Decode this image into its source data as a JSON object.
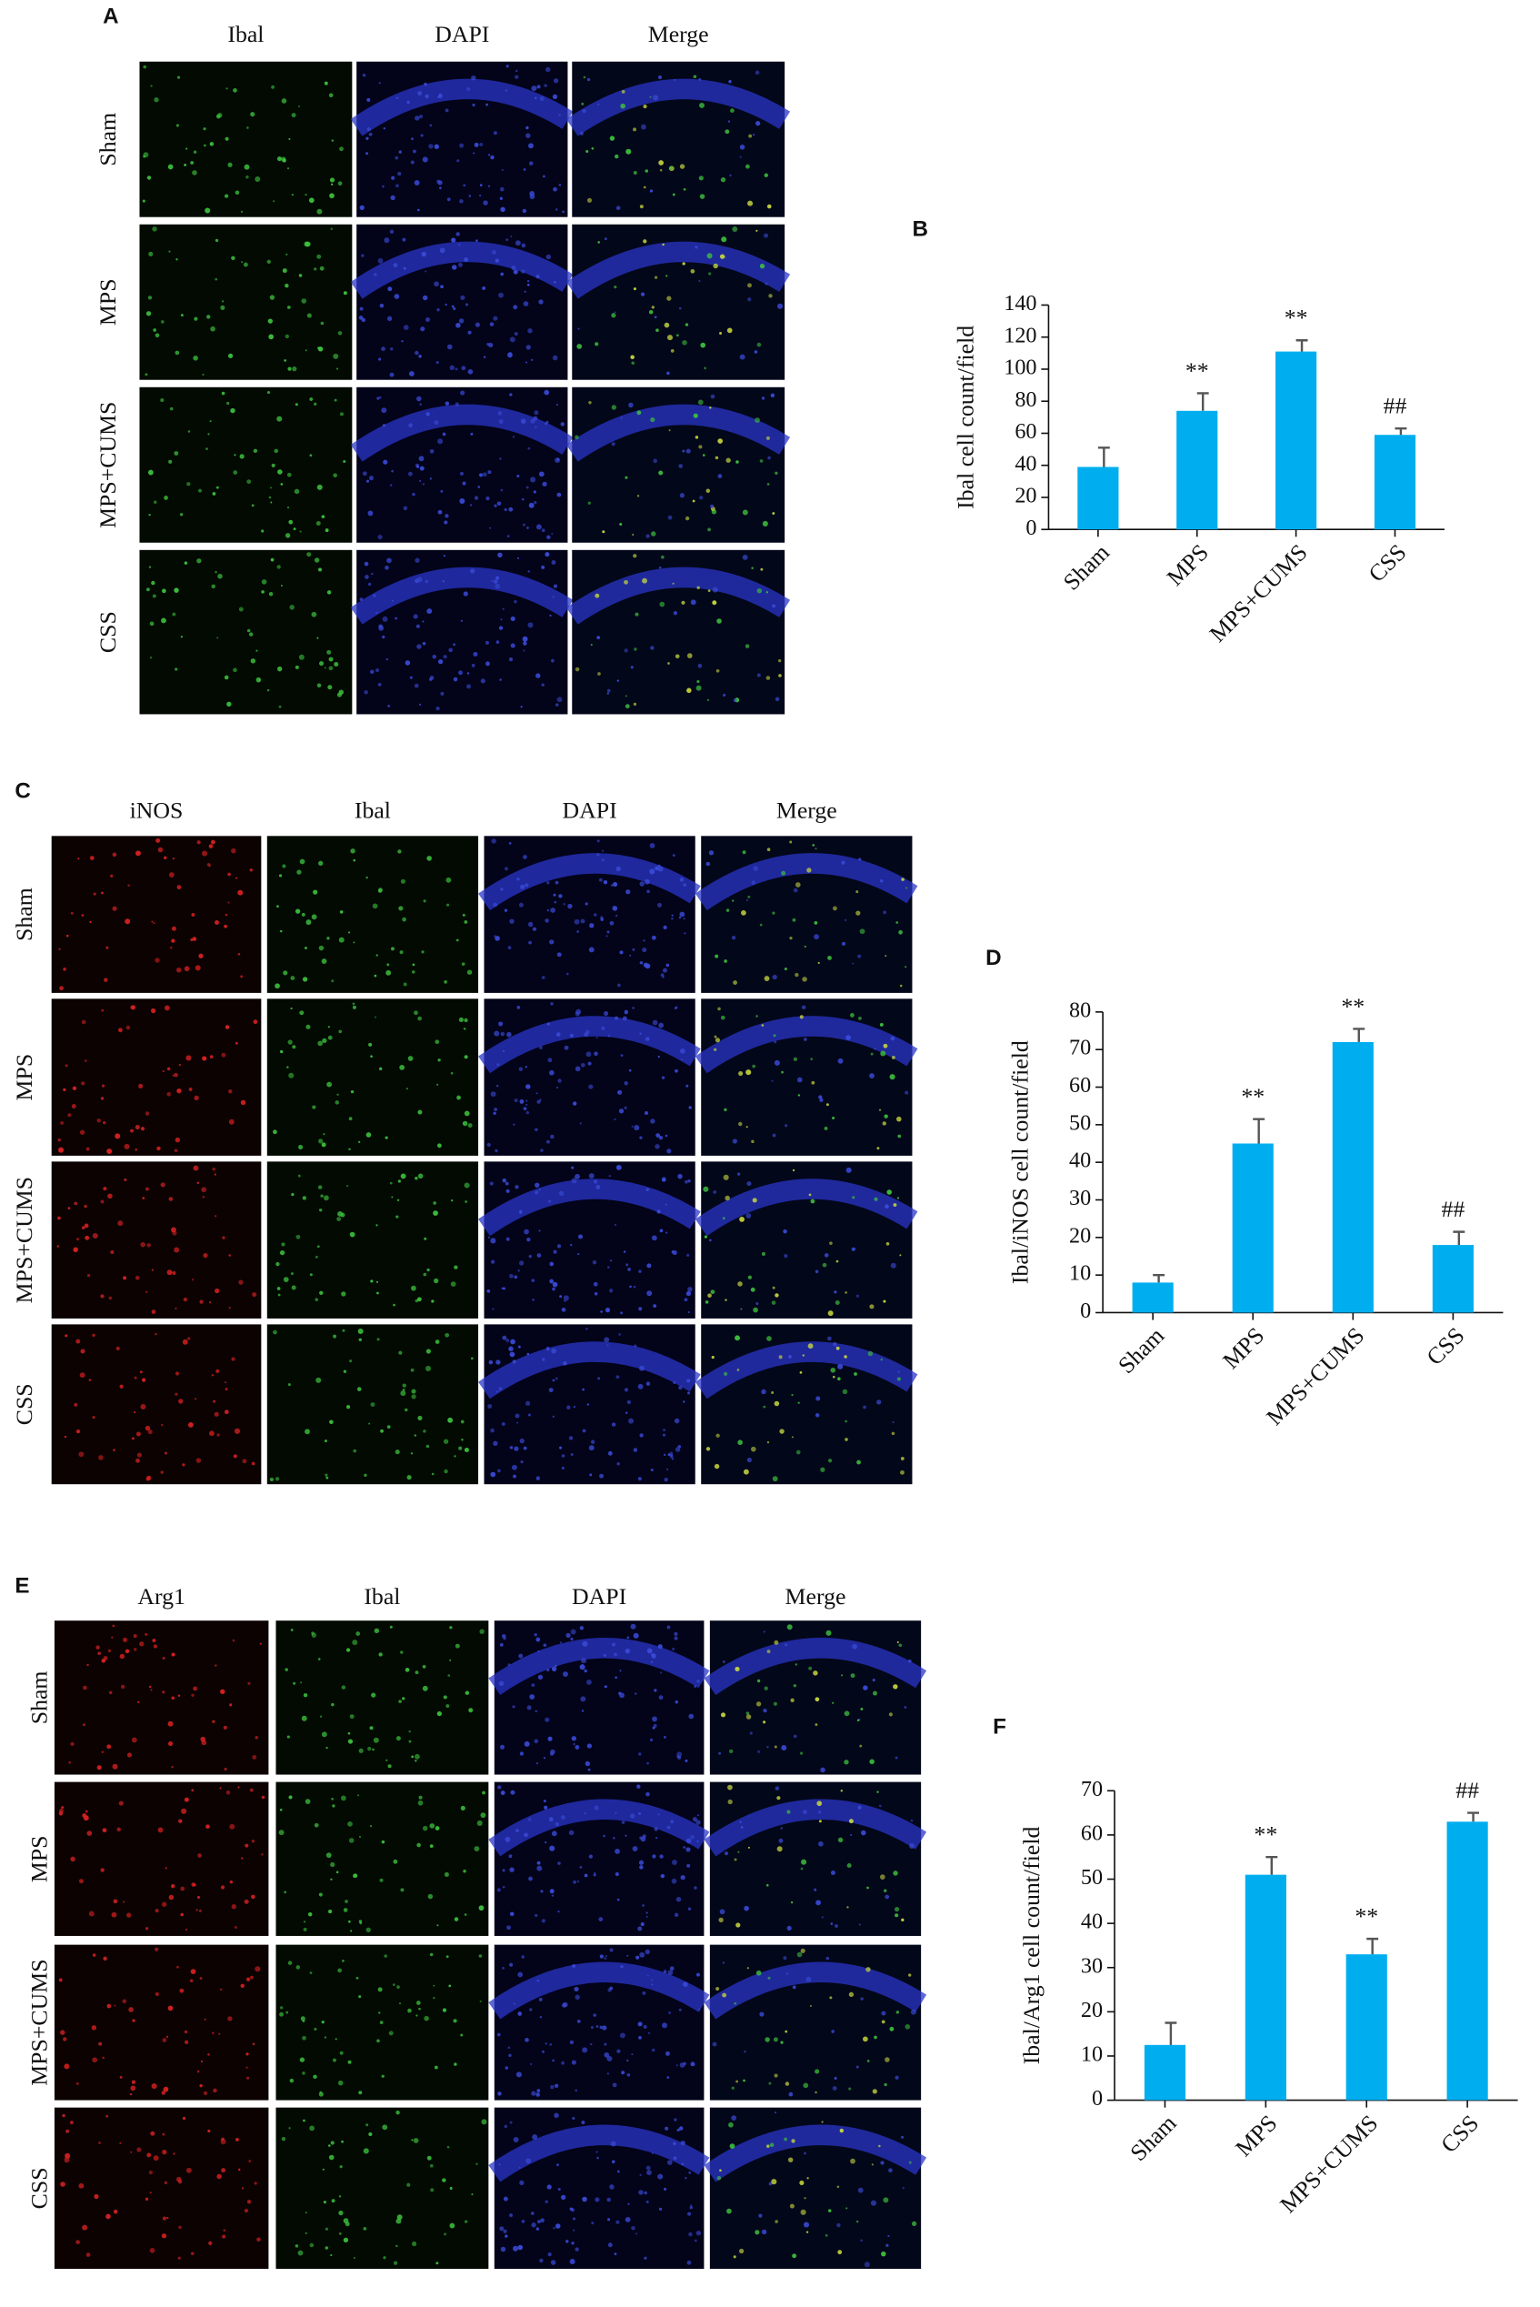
{
  "figure": [
    {
      "label": "A",
      "columns": [
        "Ibal",
        "DAPI",
        "Merge"
      ],
      "rows": [
        "Sham",
        "MPS",
        "MPS+CUMS",
        "CSS"
      ]
    },
    {
      "label": "C",
      "columns": [
        "iNOS",
        "Ibal",
        "DAPI",
        "Merge"
      ],
      "rows": [
        "Sham",
        "MPS",
        "MPS+CUMS",
        "CSS"
      ]
    },
    {
      "label": "E",
      "columns": [
        "Arg1",
        "Ibal",
        "DAPI",
        "Merge"
      ],
      "rows": [
        "Sham",
        "MPS",
        "MPS+CUMS",
        "CSS"
      ]
    }
  ],
  "chart_data": [
    {
      "type": "bar",
      "panel_label": "B",
      "ylabel": "Ibal cell count/field",
      "categories": [
        "Sham",
        "MPS",
        "MPS+CUMS",
        "CSS"
      ],
      "values": [
        39,
        74,
        111,
        59
      ],
      "errors": [
        12,
        11,
        7,
        4
      ],
      "annotations": [
        null,
        "**",
        "**",
        "##"
      ],
      "color": "#00aeef",
      "ylim": [
        0,
        140
      ],
      "yticks": [
        0,
        20,
        40,
        60,
        80,
        100,
        120,
        140
      ]
    },
    {
      "type": "bar",
      "panel_label": "D",
      "ylabel": "Ibal/iNOS cell count/field",
      "categories": [
        "Sham",
        "MPS",
        "MPS+CUMS",
        "CSS"
      ],
      "values": [
        8,
        45,
        72,
        18
      ],
      "errors": [
        2,
        6.5,
        3.5,
        3.5
      ],
      "annotations": [
        null,
        "**",
        "**",
        "##"
      ],
      "color": "#00aeef",
      "ylim": [
        0,
        80
      ],
      "yticks": [
        0,
        10,
        20,
        30,
        40,
        50,
        60,
        70,
        80
      ]
    },
    {
      "type": "bar",
      "panel_label": "F",
      "ylabel": "Ibal/Arg1 cell count/field",
      "categories": [
        "Sham",
        "MPS",
        "MPS+CUMS",
        "CSS"
      ],
      "values": [
        12.5,
        51,
        33,
        63
      ],
      "errors": [
        5,
        4,
        3.5,
        2
      ],
      "annotations": [
        null,
        "**",
        "**",
        "##"
      ],
      "color": "#00aeef",
      "ylim": [
        0,
        70
      ],
      "yticks": [
        0,
        10,
        20,
        30,
        40,
        50,
        60,
        70
      ]
    }
  ]
}
